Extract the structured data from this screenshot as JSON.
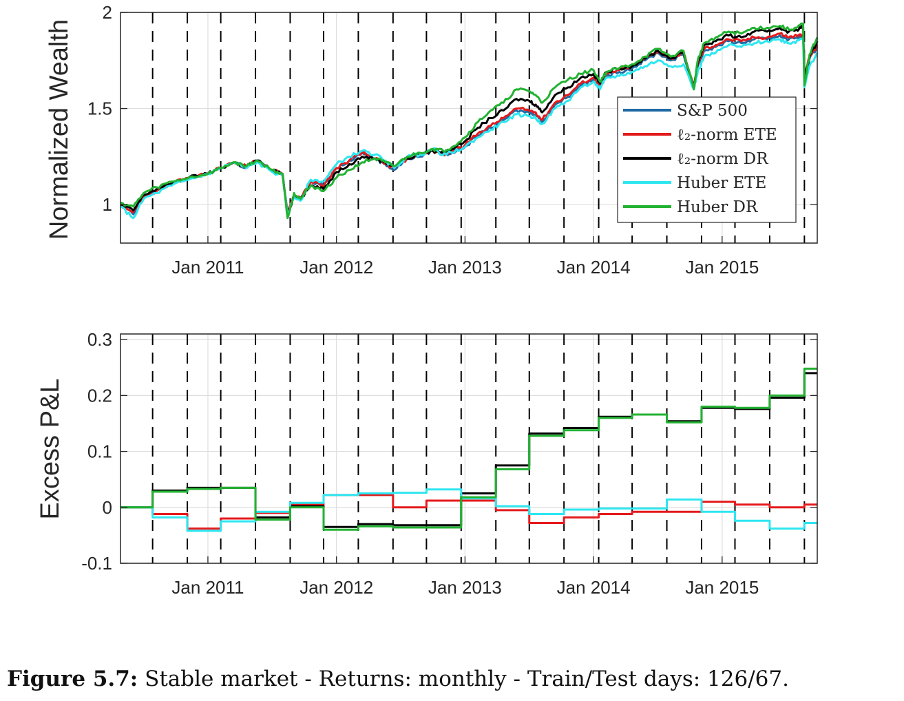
{
  "caption": {
    "label": "Figure 5.7:",
    "text": "Stable market - Returns: monthly - Train/Test days: 126/67."
  },
  "colors": {
    "sp500": "#1f6aa5",
    "l2_ete": "#e41a1c",
    "l2_dr": "#000000",
    "huber_ete": "#2ee6f0",
    "huber_dr": "#22b232",
    "grid": "#dedede",
    "frame": "#262626"
  },
  "chart_data": [
    {
      "type": "line",
      "ylabel": "Normalized Wealth",
      "xlabel": "",
      "xlim": [
        2010.32,
        2015.74
      ],
      "ylim": [
        0.8,
        2.0
      ],
      "yticks": [
        1,
        1.5,
        2
      ],
      "xticks": [
        {
          "x": 2011.0,
          "label": "Jan 2011"
        },
        {
          "x": 2012.0,
          "label": "Jan 2012"
        },
        {
          "x": 2013.0,
          "label": "Jan 2013"
        },
        {
          "x": 2014.0,
          "label": "Jan 2014"
        },
        {
          "x": 2015.0,
          "label": "Jan 2015"
        }
      ],
      "grid": true,
      "vlines_dashed": [
        2010.57,
        2010.84,
        2011.1,
        2011.37,
        2011.64,
        2011.9,
        2012.17,
        2012.44,
        2012.7,
        2012.97,
        2013.24,
        2013.5,
        2013.77,
        2014.04,
        2014.3,
        2014.57,
        2014.84,
        2015.1,
        2015.37,
        2015.64
      ],
      "legend": {
        "location": "right, inside axes",
        "entries": [
          {
            "key": "sp500",
            "label": "S&P 500"
          },
          {
            "key": "l2_ete",
            "label": "ℓ₂-norm ETE"
          },
          {
            "key": "l2_dr",
            "label": "ℓ₂-norm DR"
          },
          {
            "key": "huber_ete",
            "label": "Huber ETE"
          },
          {
            "key": "huber_dr",
            "label": "Huber DR"
          }
        ]
      },
      "x": [
        2010.32,
        2010.42,
        2010.5,
        2010.6,
        2010.72,
        2010.85,
        2011.0,
        2011.1,
        2011.2,
        2011.3,
        2011.38,
        2011.5,
        2011.58,
        2011.62,
        2011.67,
        2011.72,
        2011.8,
        2011.9,
        2012.0,
        2012.1,
        2012.2,
        2012.3,
        2012.38,
        2012.45,
        2012.55,
        2012.65,
        2012.75,
        2012.83,
        2012.9,
        2013.0,
        2013.1,
        2013.2,
        2013.3,
        2013.4,
        2013.5,
        2013.55,
        2013.6,
        2013.7,
        2013.8,
        2013.9,
        2014.0,
        2014.05,
        2014.1,
        2014.2,
        2014.3,
        2014.4,
        2014.5,
        2014.6,
        2014.7,
        2014.78,
        2014.81,
        2014.86,
        2014.95,
        2015.05,
        2015.15,
        2015.25,
        2015.35,
        2015.45,
        2015.52,
        2015.58,
        2015.63,
        2015.64,
        2015.68,
        2015.74
      ],
      "series": [
        {
          "key": "sp500",
          "name": "S&P 500",
          "values": [
            1.0,
            0.95,
            1.04,
            1.07,
            1.11,
            1.14,
            1.16,
            1.19,
            1.22,
            1.19,
            1.23,
            1.18,
            1.16,
            0.95,
            1.05,
            1.03,
            1.12,
            1.1,
            1.19,
            1.23,
            1.27,
            1.24,
            1.21,
            1.18,
            1.24,
            1.25,
            1.28,
            1.26,
            1.27,
            1.3,
            1.36,
            1.4,
            1.44,
            1.49,
            1.48,
            1.47,
            1.43,
            1.52,
            1.56,
            1.62,
            1.65,
            1.61,
            1.67,
            1.69,
            1.71,
            1.75,
            1.79,
            1.75,
            1.78,
            1.6,
            1.72,
            1.8,
            1.82,
            1.85,
            1.84,
            1.86,
            1.86,
            1.88,
            1.86,
            1.87,
            1.87,
            1.66,
            1.76,
            1.82
          ]
        },
        {
          "key": "l2_ete",
          "name": "ℓ₂-norm ETE",
          "values": [
            1.0,
            0.96,
            1.04,
            1.07,
            1.11,
            1.14,
            1.16,
            1.19,
            1.22,
            1.2,
            1.23,
            1.18,
            1.16,
            0.96,
            1.05,
            1.03,
            1.12,
            1.1,
            1.19,
            1.23,
            1.27,
            1.24,
            1.21,
            1.19,
            1.24,
            1.26,
            1.28,
            1.26,
            1.28,
            1.31,
            1.37,
            1.41,
            1.45,
            1.5,
            1.49,
            1.48,
            1.44,
            1.53,
            1.57,
            1.63,
            1.66,
            1.62,
            1.68,
            1.7,
            1.72,
            1.76,
            1.8,
            1.76,
            1.79,
            1.61,
            1.73,
            1.81,
            1.83,
            1.86,
            1.85,
            1.87,
            1.87,
            1.89,
            1.87,
            1.88,
            1.88,
            1.67,
            1.77,
            1.83
          ]
        },
        {
          "key": "l2_dr",
          "name": "ℓ₂-norm DR",
          "values": [
            1.0,
            0.97,
            1.05,
            1.08,
            1.11,
            1.14,
            1.16,
            1.19,
            1.22,
            1.2,
            1.23,
            1.18,
            1.16,
            0.94,
            1.05,
            1.03,
            1.1,
            1.08,
            1.17,
            1.21,
            1.25,
            1.24,
            1.22,
            1.2,
            1.24,
            1.26,
            1.28,
            1.27,
            1.29,
            1.33,
            1.4,
            1.45,
            1.49,
            1.55,
            1.54,
            1.52,
            1.48,
            1.57,
            1.61,
            1.66,
            1.68,
            1.63,
            1.69,
            1.71,
            1.72,
            1.76,
            1.8,
            1.76,
            1.79,
            1.61,
            1.74,
            1.83,
            1.85,
            1.88,
            1.87,
            1.9,
            1.9,
            1.92,
            1.9,
            1.91,
            1.93,
            1.66,
            1.77,
            1.85
          ]
        },
        {
          "key": "huber_ete",
          "name": "Huber ETE",
          "values": [
            0.99,
            0.93,
            1.03,
            1.06,
            1.1,
            1.13,
            1.16,
            1.19,
            1.22,
            1.19,
            1.22,
            1.17,
            1.15,
            0.95,
            1.04,
            1.02,
            1.13,
            1.12,
            1.21,
            1.25,
            1.28,
            1.26,
            1.23,
            1.19,
            1.25,
            1.26,
            1.29,
            1.26,
            1.27,
            1.3,
            1.35,
            1.39,
            1.43,
            1.47,
            1.46,
            1.45,
            1.42,
            1.5,
            1.54,
            1.61,
            1.64,
            1.6,
            1.66,
            1.67,
            1.69,
            1.72,
            1.75,
            1.72,
            1.73,
            1.6,
            1.69,
            1.77,
            1.79,
            1.83,
            1.82,
            1.84,
            1.85,
            1.86,
            1.84,
            1.85,
            1.87,
            1.61,
            1.72,
            1.79
          ]
        },
        {
          "key": "huber_dr",
          "name": "Huber DR",
          "values": [
            1.01,
            0.99,
            1.06,
            1.09,
            1.12,
            1.14,
            1.16,
            1.19,
            1.22,
            1.2,
            1.23,
            1.18,
            1.16,
            0.93,
            1.06,
            1.03,
            1.1,
            1.07,
            1.14,
            1.18,
            1.22,
            1.24,
            1.22,
            1.2,
            1.25,
            1.27,
            1.29,
            1.28,
            1.3,
            1.35,
            1.43,
            1.49,
            1.53,
            1.6,
            1.59,
            1.57,
            1.53,
            1.61,
            1.65,
            1.68,
            1.7,
            1.64,
            1.69,
            1.71,
            1.73,
            1.77,
            1.81,
            1.77,
            1.8,
            1.6,
            1.75,
            1.84,
            1.87,
            1.9,
            1.89,
            1.92,
            1.92,
            1.93,
            1.91,
            1.92,
            1.94,
            1.62,
            1.78,
            1.87
          ]
        }
      ]
    },
    {
      "type": "line",
      "ylabel": "Excess P&L",
      "xlabel": "",
      "xlim": [
        2010.32,
        2015.74
      ],
      "ylim": [
        -0.1,
        0.31
      ],
      "yticks": [
        -0.1,
        0,
        0.1,
        0.2,
        0.3
      ],
      "ytick_labels": [
        "-0.1",
        "0",
        "0.1",
        "0.2",
        "0.3"
      ],
      "xticks": [
        {
          "x": 2011.0,
          "label": "Jan 2011"
        },
        {
          "x": 2012.0,
          "label": "Jan 2012"
        },
        {
          "x": 2013.0,
          "label": "Jan 2013"
        },
        {
          "x": 2014.0,
          "label": "Jan 2014"
        },
        {
          "x": 2015.0,
          "label": "Jan 2015"
        }
      ],
      "grid": true,
      "step": true,
      "vlines_dashed": [
        2010.57,
        2010.84,
        2011.1,
        2011.37,
        2011.64,
        2011.9,
        2012.17,
        2012.44,
        2012.7,
        2012.97,
        2013.24,
        2013.5,
        2013.77,
        2014.04,
        2014.3,
        2014.57,
        2014.84,
        2015.1,
        2015.37,
        2015.64
      ],
      "x_breaks": [
        2010.32,
        2010.57,
        2010.84,
        2011.1,
        2011.37,
        2011.64,
        2011.9,
        2012.17,
        2012.44,
        2012.7,
        2012.97,
        2013.24,
        2013.5,
        2013.77,
        2014.04,
        2014.3,
        2014.57,
        2014.84,
        2015.1,
        2015.37,
        2015.64,
        2015.74
      ],
      "series": [
        {
          "key": "l2_ete",
          "name": "ℓ₂-norm ETE",
          "values": [
            0.0,
            -0.012,
            -0.038,
            -0.02,
            -0.01,
            0.005,
            0.022,
            0.022,
            0.0,
            0.012,
            0.012,
            -0.005,
            -0.028,
            -0.018,
            -0.012,
            -0.008,
            -0.008,
            0.01,
            0.005,
            0.0,
            0.005,
            0.02
          ]
        },
        {
          "key": "l2_dr",
          "name": "ℓ₂-norm DR",
          "values": [
            0.0,
            0.03,
            0.035,
            0.035,
            -0.018,
            0.002,
            -0.035,
            -0.03,
            -0.032,
            -0.032,
            0.025,
            0.075,
            0.132,
            0.142,
            0.162,
            0.166,
            0.154,
            0.178,
            0.176,
            0.196,
            0.24,
            0.24
          ]
        },
        {
          "key": "huber_ete",
          "name": "Huber ETE",
          "values": [
            0.0,
            -0.018,
            -0.042,
            -0.025,
            -0.008,
            0.008,
            0.022,
            0.025,
            0.026,
            0.032,
            0.016,
            0.002,
            -0.012,
            -0.004,
            -0.002,
            -0.002,
            0.014,
            -0.008,
            -0.024,
            -0.038,
            -0.028,
            -0.028
          ]
        },
        {
          "key": "huber_dr",
          "name": "Huber DR",
          "values": [
            0.0,
            0.028,
            0.033,
            0.035,
            -0.022,
            0.0,
            -0.04,
            -0.034,
            -0.036,
            -0.036,
            0.018,
            0.068,
            0.128,
            0.138,
            0.16,
            0.166,
            0.152,
            0.18,
            0.178,
            0.2,
            0.248,
            0.248
          ]
        }
      ]
    }
  ]
}
